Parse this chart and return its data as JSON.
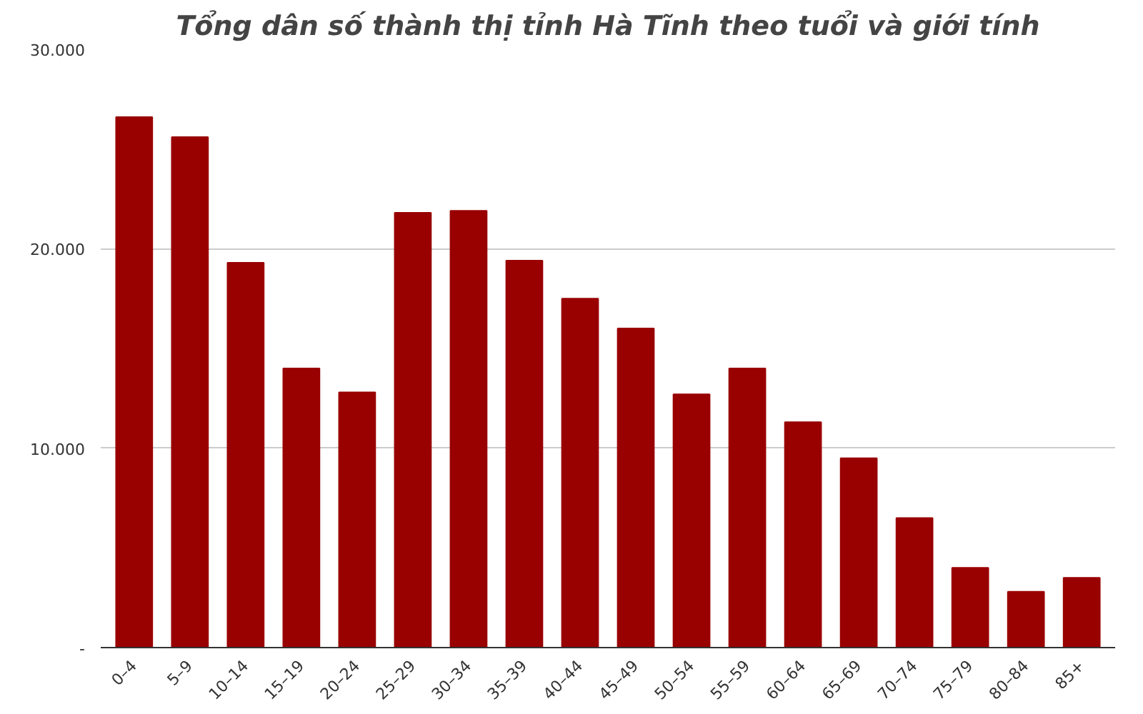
{
  "chart_data": {
    "type": "bar",
    "title": "Tổng dân số thành thị tỉnh Hà Tĩnh theo tuổi và giới tính",
    "categories": [
      "0–4",
      "5–9",
      "10–14",
      "15–19",
      "20–24",
      "25–29",
      "30–34",
      "35–39",
      "40–44",
      "45–49",
      "50–54",
      "55–59",
      "60–64",
      "65–69",
      "70–74",
      "75–79",
      "80–84",
      "85+"
    ],
    "values": [
      26600,
      25600,
      19300,
      14000,
      12800,
      21800,
      21900,
      19400,
      17500,
      16000,
      12700,
      14000,
      11300,
      9500,
      6500,
      4000,
      2800,
      3500
    ],
    "color": "#990000",
    "ylim": [
      0,
      30000
    ],
    "yticks": [
      {
        "value": 0,
        "label": "-"
      },
      {
        "value": 10000,
        "label": "10.000"
      },
      {
        "value": 20000,
        "label": "20.000"
      },
      {
        "value": 30000,
        "label": "30.000"
      }
    ],
    "grid": "y"
  }
}
